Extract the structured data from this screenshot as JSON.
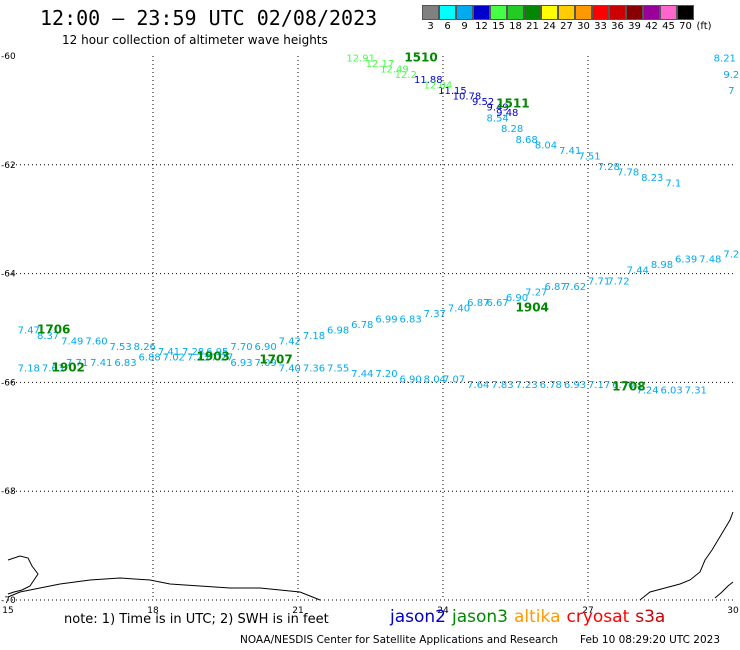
{
  "title": "12:00 – 23:59 UTC 02/08/2023",
  "subtitle": "12 hour collection of altimeter wave heights",
  "note": "note: 1) Time is in UTC; 2) SWH is in feet",
  "credit": "NOAA/NESDIS Center for Satellite Applications and Research",
  "timestamp": "Feb 10 08:29:20 UTC 2023",
  "color_scale": {
    "labels": [
      "3",
      "6",
      "9",
      "12",
      "15",
      "18",
      "21",
      "24",
      "27",
      "30",
      "33",
      "36",
      "39",
      "42",
      "45",
      "70"
    ],
    "unit": "(ft)",
    "colors": [
      "#808080",
      "#00ffff",
      "#00aaee",
      "#0000cc",
      "#44ff44",
      "#22cc22",
      "#008800",
      "#ffff00",
      "#ffcc00",
      "#ff9900",
      "#ff0000",
      "#cc0000",
      "#880000",
      "#990099",
      "#ff66cc",
      "#000000"
    ]
  },
  "missions": [
    {
      "name": "jason2",
      "color": "#0000cc"
    },
    {
      "name": "jason3",
      "color": "#008800"
    },
    {
      "name": "altika",
      "color": "#ff9900"
    },
    {
      "name": "cryosat",
      "color": "#ff0000"
    },
    {
      "name": "s3a",
      "color": "#cc0000"
    }
  ],
  "chart_data": {
    "type": "scatter",
    "x_ticks": [
      "15",
      "18",
      "21",
      "24",
      "27",
      "30"
    ],
    "y_ticks": [
      "-60",
      "-62",
      "-64",
      "-66",
      "-68",
      "-70"
    ],
    "xlim": [
      15,
      30
    ],
    "ylim": [
      -70,
      -60
    ],
    "grid": true,
    "series": [
      {
        "color": "#00aaee",
        "points": [
          {
            "x": 29.6,
            "y": -60.1,
            "label": "8.21"
          },
          {
            "x": 29.8,
            "y": -60.4,
            "label": "9.2"
          },
          {
            "x": 29.9,
            "y": -60.7,
            "label": "7"
          },
          {
            "x": 24.9,
            "y": -61.2,
            "label": "8.54"
          },
          {
            "x": 25.2,
            "y": -61.4,
            "label": "8.28"
          },
          {
            "x": 25.5,
            "y": -61.6,
            "label": "8.68"
          },
          {
            "x": 25.9,
            "y": -61.7,
            "label": "8.04"
          },
          {
            "x": 26.4,
            "y": -61.8,
            "label": "7.41"
          },
          {
            "x": 26.8,
            "y": -61.9,
            "label": "7.51"
          },
          {
            "x": 27.2,
            "y": -62.1,
            "label": "7.28"
          },
          {
            "x": 27.6,
            "y": -62.2,
            "label": "7.78"
          },
          {
            "x": 28.1,
            "y": -62.3,
            "label": "8.23"
          },
          {
            "x": 28.6,
            "y": -62.4,
            "label": "7.1"
          },
          {
            "x": 15.2,
            "y": -65.1,
            "label": "7.47"
          },
          {
            "x": 15.6,
            "y": -65.2,
            "label": "8.37"
          },
          {
            "x": 16.1,
            "y": -65.3,
            "label": "7.49"
          },
          {
            "x": 16.6,
            "y": -65.3,
            "label": "7.60"
          },
          {
            "x": 17.1,
            "y": -65.4,
            "label": "7.53"
          },
          {
            "x": 17.6,
            "y": -65.4,
            "label": "8.26"
          },
          {
            "x": 18.1,
            "y": -65.5,
            "label": "7.41"
          },
          {
            "x": 18.6,
            "y": -65.5,
            "label": "7.28"
          },
          {
            "x": 19.1,
            "y": -65.5,
            "label": "6.95"
          },
          {
            "x": 19.6,
            "y": -65.4,
            "label": "7.70"
          },
          {
            "x": 20.1,
            "y": -65.4,
            "label": "6.90"
          },
          {
            "x": 20.6,
            "y": -65.3,
            "label": "7.42"
          },
          {
            "x": 21.1,
            "y": -65.2,
            "label": "7.18"
          },
          {
            "x": 21.6,
            "y": -65.1,
            "label": "6.98"
          },
          {
            "x": 22.1,
            "y": -65.0,
            "label": "6.78"
          },
          {
            "x": 22.6,
            "y": -64.9,
            "label": "6.99"
          },
          {
            "x": 23.1,
            "y": -64.9,
            "label": "6.83"
          },
          {
            "x": 23.6,
            "y": -64.8,
            "label": "7.37"
          },
          {
            "x": 24.1,
            "y": -64.7,
            "label": "7.40"
          },
          {
            "x": 24.5,
            "y": -64.6,
            "label": "6.87"
          },
          {
            "x": 24.9,
            "y": -64.6,
            "label": "6.67"
          },
          {
            "x": 25.3,
            "y": -64.5,
            "label": "6.90"
          },
          {
            "x": 25.7,
            "y": -64.4,
            "label": "7.27"
          },
          {
            "x": 26.1,
            "y": -64.3,
            "label": "6.87"
          },
          {
            "x": 26.5,
            "y": -64.3,
            "label": "7.62"
          },
          {
            "x": 27.0,
            "y": -64.2,
            "label": "7.71"
          },
          {
            "x": 27.4,
            "y": -64.2,
            "label": "7.72"
          },
          {
            "x": 27.8,
            "y": -64.0,
            "label": "7.44"
          },
          {
            "x": 28.3,
            "y": -63.9,
            "label": "8.98"
          },
          {
            "x": 28.8,
            "y": -63.8,
            "label": "6.39"
          },
          {
            "x": 29.3,
            "y": -63.8,
            "label": "7.48"
          },
          {
            "x": 29.8,
            "y": -63.7,
            "label": "7.29"
          },
          {
            "x": 15.2,
            "y": -65.8,
            "label": "7.18"
          },
          {
            "x": 15.7,
            "y": -65.8,
            "label": "7.63"
          },
          {
            "x": 16.2,
            "y": -65.7,
            "label": "7.71"
          },
          {
            "x": 16.7,
            "y": -65.7,
            "label": "7.41"
          },
          {
            "x": 17.2,
            "y": -65.7,
            "label": "6.83"
          },
          {
            "x": 17.7,
            "y": -65.6,
            "label": "6.88"
          },
          {
            "x": 18.2,
            "y": -65.6,
            "label": "7.02"
          },
          {
            "x": 18.7,
            "y": -65.6,
            "label": "7.23"
          },
          {
            "x": 19.2,
            "y": -65.6,
            "label": "7.27"
          },
          {
            "x": 19.6,
            "y": -65.7,
            "label": "6.93"
          },
          {
            "x": 20.1,
            "y": -65.7,
            "label": "7.09"
          },
          {
            "x": 20.6,
            "y": -65.8,
            "label": "7.40"
          },
          {
            "x": 21.1,
            "y": -65.8,
            "label": "7.36"
          },
          {
            "x": 21.6,
            "y": -65.8,
            "label": "7.55"
          },
          {
            "x": 22.1,
            "y": -65.9,
            "label": "7.44"
          },
          {
            "x": 22.6,
            "y": -65.9,
            "label": "7.20"
          },
          {
            "x": 23.1,
            "y": -66.0,
            "label": "6.90"
          },
          {
            "x": 23.6,
            "y": -66.0,
            "label": "8.04"
          },
          {
            "x": 24.0,
            "y": -66.0,
            "label": "7.07"
          },
          {
            "x": 24.5,
            "y": -66.1,
            "label": "7.64"
          },
          {
            "x": 25.0,
            "y": -66.1,
            "label": "7.83"
          },
          {
            "x": 25.5,
            "y": -66.1,
            "label": "7.23"
          },
          {
            "x": 26.0,
            "y": -66.1,
            "label": "6.78"
          },
          {
            "x": 26.5,
            "y": -66.1,
            "label": "6.93"
          },
          {
            "x": 27.0,
            "y": -66.1,
            "label": "7.17"
          },
          {
            "x": 27.5,
            "y": -66.1,
            "label": "6.70"
          },
          {
            "x": 28.0,
            "y": -66.2,
            "label": "7.24"
          },
          {
            "x": 28.5,
            "y": -66.2,
            "label": "6.03"
          },
          {
            "x": 29.0,
            "y": -66.2,
            "label": "7.31"
          }
        ]
      },
      {
        "color": "#0000cc",
        "points": [
          {
            "x": 23.4,
            "y": -60.5,
            "label": "11.88"
          },
          {
            "x": 23.9,
            "y": -60.7,
            "label": "11.15"
          },
          {
            "x": 24.2,
            "y": -60.8,
            "label": "10.78"
          },
          {
            "x": 24.6,
            "y": -60.9,
            "label": "9.52"
          },
          {
            "x": 24.9,
            "y": -61.0,
            "label": "9.49"
          },
          {
            "x": 25.1,
            "y": -61.1,
            "label": "9.48"
          }
        ]
      },
      {
        "color": "#44ff44",
        "points": [
          {
            "x": 22.0,
            "y": -60.1,
            "label": "12.91"
          },
          {
            "x": 22.4,
            "y": -60.2,
            "label": "12.17"
          },
          {
            "x": 22.7,
            "y": -60.3,
            "label": "12.49"
          },
          {
            "x": 23.0,
            "y": -60.4,
            "label": "12.2"
          },
          {
            "x": 23.6,
            "y": -60.6,
            "label": "12.04"
          }
        ]
      }
    ],
    "pass_labels": [
      {
        "x": 23.2,
        "y": -60.1,
        "label": "1510",
        "color": "#008800"
      },
      {
        "x": 25.1,
        "y": -60.95,
        "label": "1511",
        "color": "#008800"
      },
      {
        "x": 15.6,
        "y": -65.1,
        "label": "1706",
        "color": "#008800"
      },
      {
        "x": 15.9,
        "y": -65.8,
        "label": "1902",
        "color": "#008800"
      },
      {
        "x": 18.9,
        "y": -65.6,
        "label": "1903",
        "color": "#008800"
      },
      {
        "x": 20.2,
        "y": -65.65,
        "label": "1707",
        "color": "#008800"
      },
      {
        "x": 25.5,
        "y": -64.7,
        "label": "1904",
        "color": "#008800"
      },
      {
        "x": 27.5,
        "y": -66.15,
        "label": "1708",
        "color": "#008800"
      }
    ]
  }
}
